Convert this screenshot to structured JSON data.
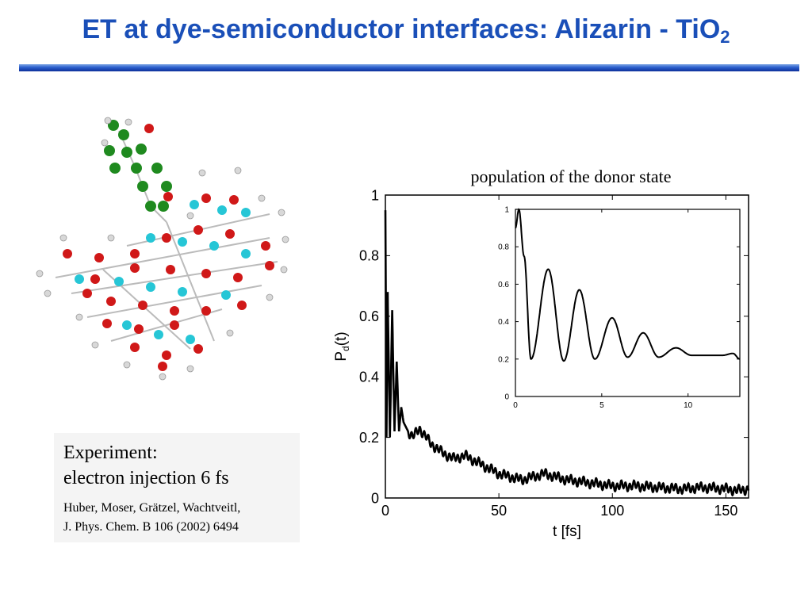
{
  "slide": {
    "title_main": "ET at dye-semiconductor interfaces: Alizarin - TiO",
    "title_sub": "2"
  },
  "molecule": {
    "description_icon": "molecule-structure-icon",
    "colors": {
      "titanium": "#26c6d6",
      "oxygen": "#d01818",
      "hydrogen": "#d8d8d8",
      "carbon": "#1f8a1f"
    }
  },
  "experiment_box": {
    "line1": "Experiment:",
    "line2": "electron injection 6 fs",
    "ref_line1": "Huber, Moser, Grätzel, Wachtveitl,",
    "ref_line2": "J. Phys. Chem. B 106 (2002) 6494"
  },
  "chart_data": [
    {
      "type": "line",
      "title": "population of the donor state",
      "xlabel": "t [fs]",
      "ylabel": "P_d(t)",
      "ylabel_main": "P",
      "ylabel_sub": "d",
      "ylabel_tail": "(t)",
      "xlim": [
        0,
        160
      ],
      "ylim": [
        0,
        1
      ],
      "xticks": [
        0,
        50,
        100,
        150
      ],
      "yticks": [
        0,
        0.2,
        0.4,
        0.6,
        0.8,
        1
      ],
      "ytick_labels": [
        "0",
        "0.2",
        "0.4",
        "0.6",
        "0.8",
        "1"
      ],
      "series": [
        {
          "x": [
            0,
            0.5,
            1,
            2,
            3,
            4,
            5,
            6,
            7,
            8,
            10,
            12,
            15,
            20,
            25,
            30,
            35,
            40,
            50,
            60,
            70,
            80,
            90,
            100,
            110,
            120,
            130,
            140,
            150,
            155,
            160
          ],
          "y": [
            0.95,
            0.2,
            0.68,
            0.2,
            0.62,
            0.22,
            0.45,
            0.22,
            0.3,
            0.25,
            0.22,
            0.2,
            0.23,
            0.18,
            0.15,
            0.13,
            0.14,
            0.12,
            0.08,
            0.06,
            0.08,
            0.06,
            0.05,
            0.04,
            0.04,
            0.035,
            0.03,
            0.035,
            0.03,
            0.025,
            0.03
          ]
        }
      ]
    },
    {
      "type": "line",
      "title": "",
      "xlim": [
        0,
        13
      ],
      "ylim": [
        0,
        1
      ],
      "xticks": [
        0,
        5,
        10
      ],
      "yticks": [
        0,
        0.2,
        0.4,
        0.6,
        0.8,
        1
      ],
      "ytick_labels": [
        "0",
        "0.2",
        "0.4",
        "0.6",
        "0.8",
        "1"
      ],
      "series": [
        {
          "x": [
            0,
            0.2,
            0.5,
            0.9,
            1.9,
            2.8,
            3.7,
            4.6,
            5.6,
            6.5,
            7.4,
            8.3,
            9.3,
            10.2,
            11.1,
            12.0,
            12.6,
            13.0
          ],
          "y": [
            0.9,
            1.0,
            0.75,
            0.2,
            0.68,
            0.19,
            0.57,
            0.2,
            0.42,
            0.21,
            0.34,
            0.21,
            0.26,
            0.22,
            0.22,
            0.22,
            0.23,
            0.2
          ]
        }
      ]
    }
  ]
}
